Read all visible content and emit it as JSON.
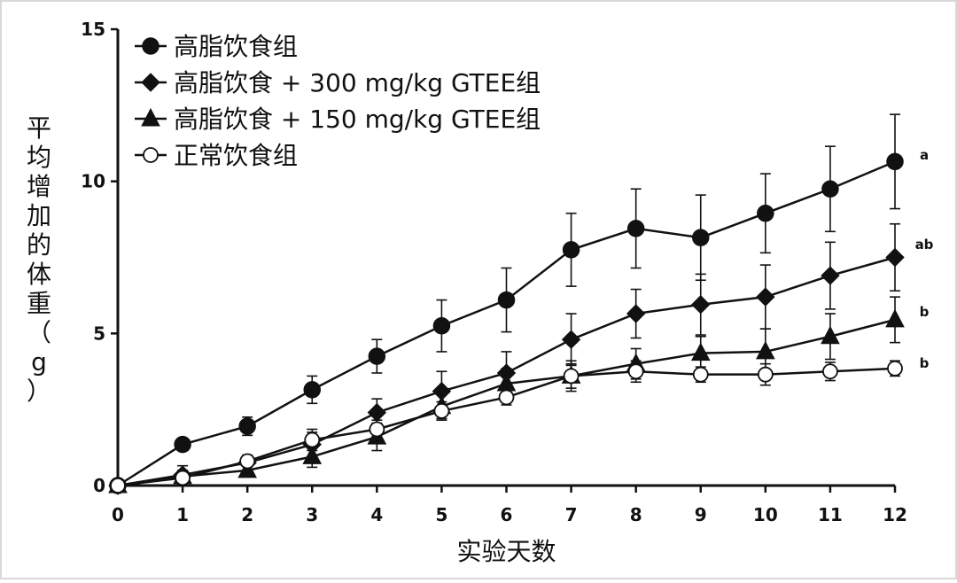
{
  "chart_data": {
    "type": "line",
    "xlabel": "实验天数",
    "ylabel": "平均增加的体重（g）",
    "xlim": [
      0,
      12
    ],
    "ylim": [
      0,
      15
    ],
    "x_ticks": [
      0,
      1,
      2,
      3,
      4,
      5,
      6,
      7,
      8,
      9,
      10,
      11,
      12
    ],
    "y_ticks": [
      0,
      5,
      10,
      15
    ],
    "grid": false,
    "legend_position": "top-left",
    "x": [
      0,
      1,
      2,
      3,
      4,
      5,
      6,
      7,
      8,
      9,
      10,
      11,
      12
    ],
    "series": [
      {
        "name": "高脂饮食组",
        "marker": "circle-filled",
        "values": [
          0,
          1.35,
          1.95,
          3.15,
          4.25,
          5.25,
          6.1,
          7.75,
          8.45,
          8.15,
          8.95,
          9.75,
          10.65
        ],
        "errors": [
          0,
          0.1,
          0.3,
          0.45,
          0.55,
          0.85,
          1.05,
          1.2,
          1.3,
          1.4,
          1.3,
          1.4,
          1.55
        ],
        "sig": "a"
      },
      {
        "name": "高脂饮食 + 300 mg/kg GTEE组",
        "marker": "diamond-filled",
        "values": [
          0,
          0.35,
          0.75,
          1.35,
          2.4,
          3.1,
          3.7,
          4.8,
          5.65,
          5.95,
          6.2,
          6.9,
          7.5
        ],
        "errors": [
          0,
          0.3,
          0.25,
          0.4,
          0.45,
          0.65,
          0.7,
          0.85,
          0.8,
          1.0,
          1.05,
          1.1,
          1.1
        ],
        "sig": "ab"
      },
      {
        "name": "高脂饮食 + 150 mg/kg GTEE组",
        "marker": "triangle-filled",
        "values": [
          0,
          0.3,
          0.5,
          0.95,
          1.6,
          2.6,
          3.35,
          3.6,
          4.0,
          4.35,
          4.4,
          4.9,
          5.45
        ],
        "errors": [
          0,
          0.2,
          0.2,
          0.35,
          0.45,
          0.4,
          0.5,
          0.5,
          0.5,
          0.55,
          0.75,
          0.75,
          0.75
        ],
        "sig": "b"
      },
      {
        "name": "正常饮食组",
        "marker": "circle-open",
        "values": [
          0,
          0.25,
          0.8,
          1.5,
          1.85,
          2.45,
          2.9,
          3.6,
          3.75,
          3.65,
          3.65,
          3.75,
          3.85
        ],
        "errors": [
          0,
          0.15,
          0.15,
          0.35,
          0.3,
          0.3,
          0.25,
          0.4,
          0.35,
          0.25,
          0.35,
          0.3,
          0.25
        ],
        "sig": "b"
      }
    ],
    "colors": {
      "line": "#111111",
      "open_fill": "#ffffff",
      "frame": "#d8d8d8"
    }
  }
}
